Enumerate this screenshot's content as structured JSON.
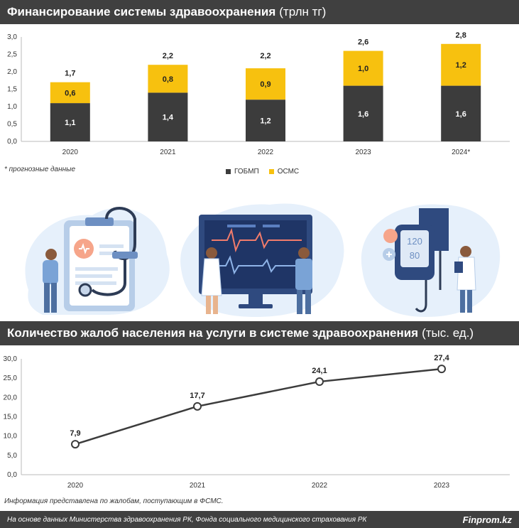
{
  "chart_data": [
    {
      "type": "bar",
      "stacked": true,
      "title": "Финансирование системы здравоохранения",
      "title_unit": "(трлн тг)",
      "categories": [
        "2020",
        "2021",
        "2022",
        "2023",
        "2024*"
      ],
      "series": [
        {
          "name": "ГОБМП",
          "values": [
            1.1,
            1.4,
            1.2,
            1.6,
            1.6
          ],
          "labels": [
            "1,1",
            "1,4",
            "1,2",
            "1,6",
            "1,6"
          ]
        },
        {
          "name": "ОСМС",
          "values": [
            0.6,
            0.8,
            0.9,
            1.0,
            1.2
          ],
          "labels": [
            "0,6",
            "0,8",
            "0,9",
            "1,0",
            "1,2"
          ]
        }
      ],
      "totals": [
        1.7,
        2.2,
        2.2,
        2.6,
        2.8
      ],
      "total_labels": [
        "1,7",
        "2,2",
        "2,2",
        "2,6",
        "2,8"
      ],
      "ylim": [
        0,
        3.0
      ],
      "yticks": [
        "0,0",
        "0,5",
        "1,0",
        "1,5",
        "2,0",
        "2,5",
        "3,0"
      ],
      "legend_position": "bottom-center",
      "grid": false
    },
    {
      "type": "line",
      "title": "Количество жалоб населения на услуги в системе здравоохранения",
      "title_unit": "(тыс. ед.)",
      "x": [
        "2020",
        "2021",
        "2022",
        "2023"
      ],
      "values": [
        7.9,
        17.7,
        24.1,
        27.4
      ],
      "labels": [
        "7,9",
        "17,7",
        "24,1",
        "27,4"
      ],
      "ylim": [
        0,
        30.0
      ],
      "yticks": [
        "0,0",
        "5,0",
        "10,0",
        "15,0",
        "20,0",
        "25,0",
        "30,0"
      ],
      "grid": false
    }
  ],
  "notes": {
    "forecast": "* прогнозные данные",
    "complaints": "Информация представлена по жалобам, поступающим в ФСМС."
  },
  "footer": {
    "source": "На основе данных Министерства здравоохранения РК, Фонда социального медицинского страхования РК",
    "brand": "Finprom.kz"
  },
  "illustration": {
    "monitor_top": "120",
    "monitor_bottom": "80"
  },
  "colors": {
    "gobmp": "#3c3c3c",
    "osms": "#f7c10f",
    "line": "#3c3c3c",
    "header": "#404040"
  }
}
